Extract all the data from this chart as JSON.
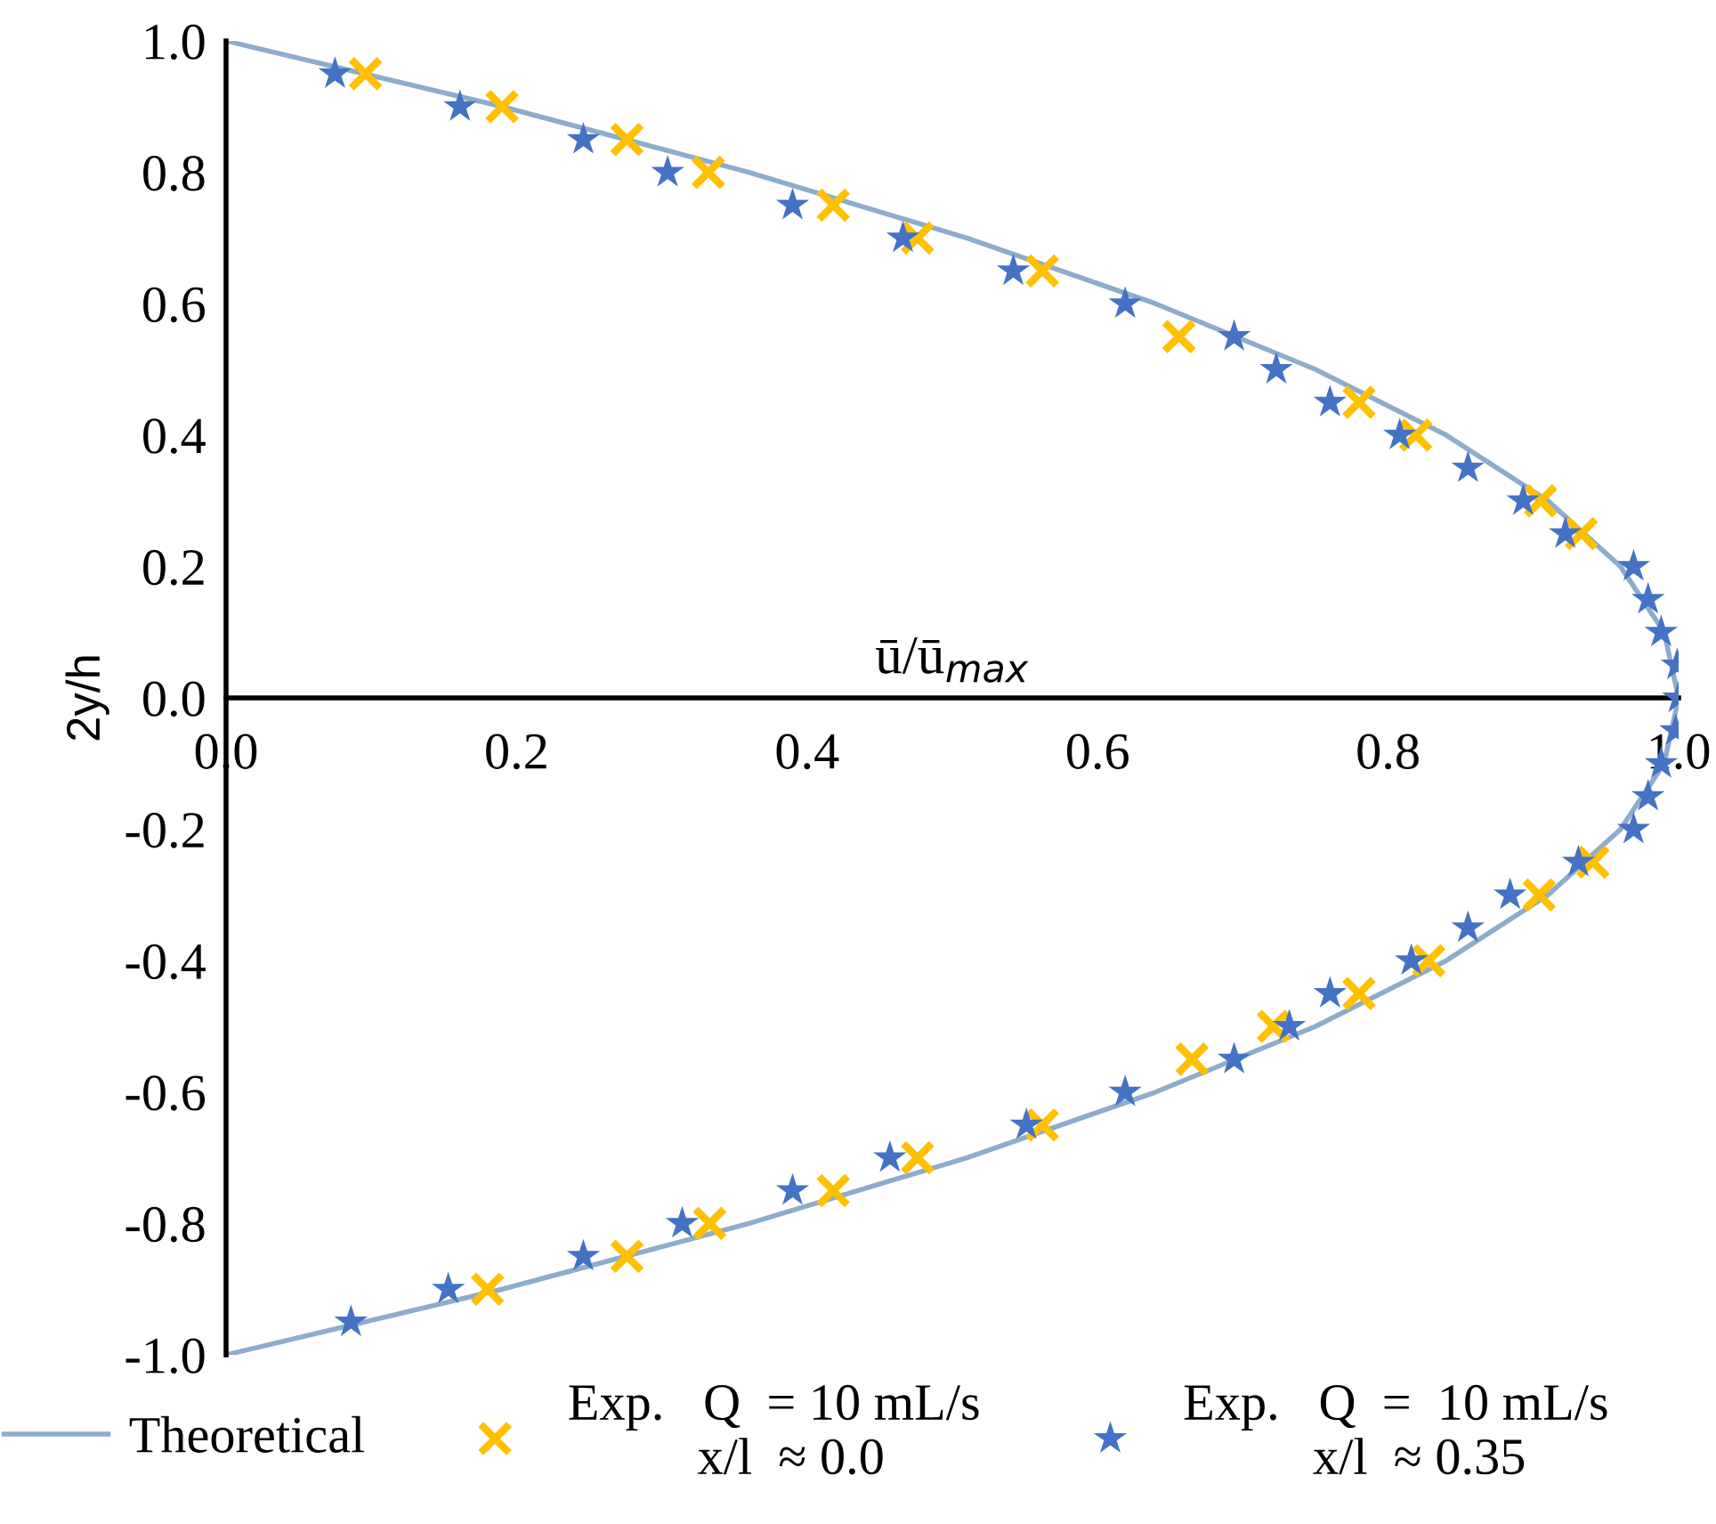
{
  "chart_data": {
    "type": "scatter",
    "xlabel": "ū/ū$_{max}$",
    "ylabel": "2y/h",
    "xlim": [
      0,
      1
    ],
    "ylim": [
      -1,
      1
    ],
    "xticks": [
      {
        "value": 0,
        "label": "0.0"
      },
      {
        "value": 0.2,
        "label": "0.2"
      },
      {
        "value": 0.4,
        "label": "0.4"
      },
      {
        "value": 0.6,
        "label": "0.6"
      },
      {
        "value": 0.8,
        "label": "0.8"
      },
      {
        "value": 1,
        "label": "1.0"
      }
    ],
    "yticks": [
      {
        "value": -1,
        "label": "-1.0"
      },
      {
        "value": -0.8,
        "label": "-0.8"
      },
      {
        "value": -0.6,
        "label": "-0.6"
      },
      {
        "value": -0.4,
        "label": "-0.4"
      },
      {
        "value": -0.2,
        "label": "-0.2"
      },
      {
        "value": 0,
        "label": "0.0"
      },
      {
        "value": 0.2,
        "label": "0.2"
      },
      {
        "value": 0.4,
        "label": "0.4"
      },
      {
        "value": 0.6,
        "label": "0.6"
      },
      {
        "value": 0.8,
        "label": "0.8"
      },
      {
        "value": 1,
        "label": "1.0"
      }
    ],
    "grid": false,
    "legend": "bottom",
    "series": [
      {
        "name": "Theoretical",
        "type": "line",
        "color": "#8eaccb",
        "marker": "none",
        "line_style": "solid",
        "x": [
          0,
          0.19,
          0.36,
          0.51,
          0.64,
          0.75,
          0.84,
          0.91,
          0.96,
          0.99,
          1,
          0.99,
          0.96,
          0.91,
          0.84,
          0.75,
          0.64,
          0.51,
          0.36,
          0.19,
          0
        ],
        "values": [
          -1,
          -0.9,
          -0.8,
          -0.7,
          -0.6,
          -0.5,
          -0.4,
          -0.3,
          -0.2,
          -0.1,
          0,
          0.1,
          0.2,
          0.3,
          0.4,
          0.5,
          0.6,
          0.7,
          0.8,
          0.9,
          1
        ]
      },
      {
        "name": "Exp.   Q  = 10 mL/s\n          x/l  ≈ 0.0",
        "color": "#ffc000",
        "marker": "cross",
        "x": [
          0.096,
          0.19,
          0.276,
          0.332,
          0.418,
          0.476,
          0.562,
          0.656,
          0.78,
          0.819,
          0.905,
          0.933,
          0.941,
          0.904,
          0.828,
          0.78,
          0.721,
          0.665,
          0.562,
          0.476,
          0.418,
          0.333,
          0.276,
          0.18
        ],
        "values": [
          0.95,
          0.9,
          0.85,
          0.8,
          0.75,
          0.7,
          0.65,
          0.55,
          0.45,
          0.4,
          0.3,
          0.25,
          -0.25,
          -0.3,
          -0.4,
          -0.45,
          -0.5,
          -0.55,
          -0.65,
          -0.7,
          -0.75,
          -0.8,
          -0.85,
          -0.9
        ]
      },
      {
        "name": "Exp.   Q  =  10 mL/s\n          x/l  ≈ 0.35",
        "color": "#4472c4",
        "marker": "star",
        "x": [
          0.075,
          0.161,
          0.246,
          0.304,
          0.39,
          0.466,
          0.542,
          0.619,
          0.694,
          0.723,
          0.76,
          0.808,
          0.855,
          0.893,
          0.922,
          0.969,
          0.979,
          0.988,
          0.999,
          1.0,
          0.998,
          0.988,
          0.979,
          0.969,
          0.931,
          0.884,
          0.855,
          0.816,
          0.76,
          0.732,
          0.694,
          0.619,
          0.551,
          0.457,
          0.39,
          0.314,
          0.246,
          0.153,
          0.086
        ],
        "values": [
          0.95,
          0.9,
          0.85,
          0.8,
          0.75,
          0.7,
          0.65,
          0.6,
          0.55,
          0.5,
          0.45,
          0.4,
          0.35,
          0.3,
          0.25,
          0.2,
          0.15,
          0.1,
          0.05,
          0,
          -0.05,
          -0.1,
          -0.15,
          -0.2,
          -0.25,
          -0.3,
          -0.35,
          -0.4,
          -0.45,
          -0.5,
          -0.55,
          -0.6,
          -0.65,
          -0.7,
          -0.75,
          -0.8,
          -0.85,
          -0.9,
          -0.95
        ]
      }
    ]
  }
}
